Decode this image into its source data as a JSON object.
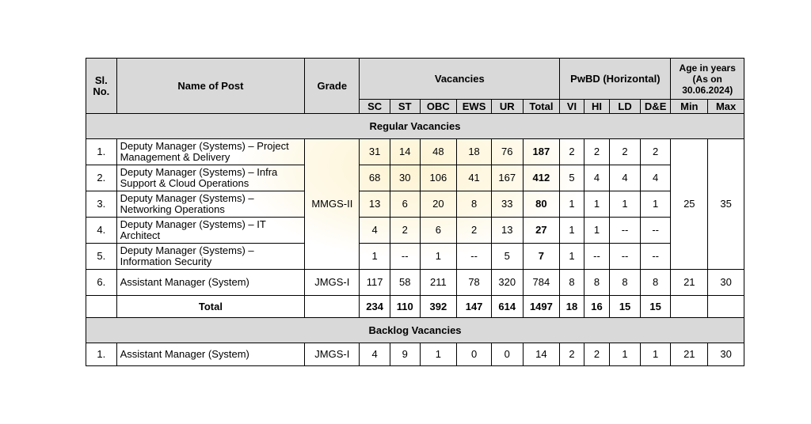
{
  "headers": {
    "sl_no": "Sl. No.",
    "name_of_post": "Name of Post",
    "grade": "Grade",
    "vacancies": "Vacancies",
    "pwbd": "PwBD (Horizontal)",
    "age": "Age in years (As on 30.06.2024)",
    "vac_cols": [
      "SC",
      "ST",
      "OBC",
      "EWS",
      "UR",
      "Total"
    ],
    "pwbd_cols": [
      "VI",
      "HI",
      "LD",
      "D&E"
    ],
    "age_cols": [
      "Min",
      "Max"
    ]
  },
  "regular": {
    "title": "Regular Vacancies",
    "mmgs_grade": "MMGS-II",
    "mmgs_age_min": "25",
    "mmgs_age_max": "35",
    "rows": [
      {
        "sl": "1.",
        "post": "Deputy Manager (Systems) – Project Management & Delivery",
        "sc": "31",
        "st": "14",
        "obc": "48",
        "ews": "18",
        "ur": "76",
        "total": "187",
        "vi": "2",
        "hi": "2",
        "ld": "2",
        "de": "2"
      },
      {
        "sl": "2.",
        "post": "Deputy Manager (Systems) – Infra Support & Cloud Operations",
        "sc": "68",
        "st": "30",
        "obc": "106",
        "ews": "41",
        "ur": "167",
        "total": "412",
        "vi": "5",
        "hi": "4",
        "ld": "4",
        "de": "4"
      },
      {
        "sl": "3.",
        "post": "Deputy Manager (Systems) – Networking Operations",
        "sc": "13",
        "st": "6",
        "obc": "20",
        "ews": "8",
        "ur": "33",
        "total": "80",
        "vi": "1",
        "hi": "1",
        "ld": "1",
        "de": "1"
      },
      {
        "sl": "4.",
        "post": "Deputy Manager (Systems) – IT Architect",
        "sc": "4",
        "st": "2",
        "obc": "6",
        "ews": "2",
        "ur": "13",
        "total": "27",
        "vi": "1",
        "hi": "1",
        "ld": "--",
        "de": "--"
      },
      {
        "sl": "5.",
        "post": "Deputy Manager (Systems) – Information Security",
        "sc": "1",
        "st": "--",
        "obc": "1",
        "ews": "--",
        "ur": "5",
        "total": "7",
        "vi": "1",
        "hi": "--",
        "ld": "--",
        "de": "--"
      },
      {
        "sl": "6.",
        "post": "Assistant Manager (System)",
        "grade": "JMGS-I",
        "sc": "117",
        "st": "58",
        "obc": "211",
        "ews": "78",
        "ur": "320",
        "total": "784",
        "vi": "8",
        "hi": "8",
        "ld": "8",
        "de": "8",
        "min": "21",
        "max": "30"
      }
    ],
    "total": {
      "label": "Total",
      "sc": "234",
      "st": "110",
      "obc": "392",
      "ews": "147",
      "ur": "614",
      "total": "1497",
      "vi": "18",
      "hi": "16",
      "ld": "15",
      "de": "15"
    }
  },
  "backlog": {
    "title": "Backlog Vacancies",
    "row": {
      "sl": "1.",
      "post": "Assistant Manager (System)",
      "grade": "JMGS-I",
      "sc": "4",
      "st": "9",
      "obc": "1",
      "ews": "0",
      "ur": "0",
      "total": "14",
      "vi": "2",
      "hi": "2",
      "ld": "1",
      "de": "1",
      "min": "21",
      "max": "30"
    }
  }
}
